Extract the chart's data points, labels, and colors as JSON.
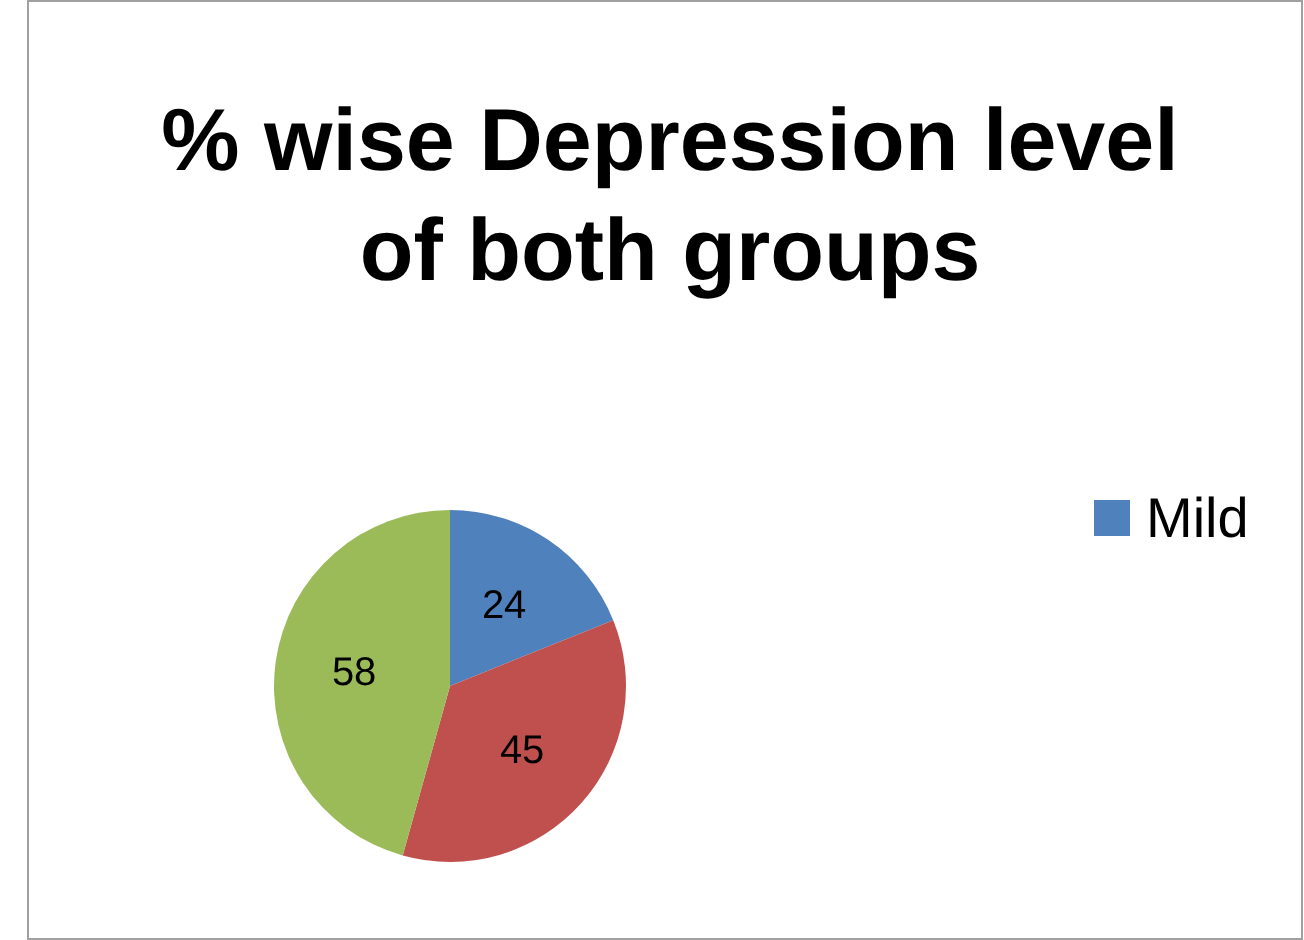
{
  "chart_data": {
    "type": "pie",
    "title": "% wise Depression level of both groups",
    "categories": [
      "Mild",
      null,
      null
    ],
    "values": [
      24,
      45,
      58
    ],
    "colors": [
      "#4f81bd",
      "#c0504d",
      "#9bbb59"
    ],
    "data_labels": true,
    "legend": "right"
  }
}
